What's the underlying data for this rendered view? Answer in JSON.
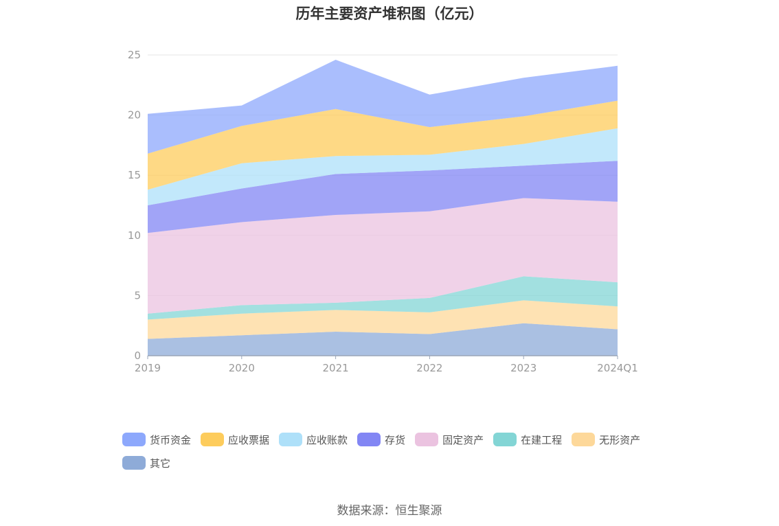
{
  "chart_data": {
    "type": "area",
    "stacked": true,
    "title": "历年主要资产堆积图（亿元）",
    "x": [
      "2019",
      "2020",
      "2021",
      "2022",
      "2023",
      "2024Q1"
    ],
    "ylim": [
      0,
      25
    ],
    "yticks": [
      "0",
      "5",
      "10",
      "15",
      "20",
      "25"
    ],
    "grid": true,
    "legend_position": "bottom",
    "series": [
      {
        "name": "其它",
        "color": "#8eabd8",
        "values": [
          1.4,
          1.7,
          2.0,
          1.8,
          2.7,
          2.2
        ]
      },
      {
        "name": "无形资产",
        "color": "#fdd89a",
        "values": [
          1.6,
          1.8,
          1.8,
          1.8,
          1.9,
          1.9
        ]
      },
      {
        "name": "在建工程",
        "color": "#83d5d5",
        "values": [
          0.5,
          0.7,
          0.6,
          1.2,
          2.0,
          2.0
        ]
      },
      {
        "name": "固定资产",
        "color": "#ebc3e0",
        "values": [
          6.7,
          6.9,
          7.3,
          7.2,
          6.5,
          6.7
        ]
      },
      {
        "name": "存货",
        "color": "#8286f4",
        "values": [
          2.3,
          2.8,
          3.4,
          3.4,
          2.7,
          3.4
        ]
      },
      {
        "name": "应收账款",
        "color": "#aee0f9",
        "values": [
          1.3,
          2.1,
          1.5,
          1.3,
          1.8,
          2.7
        ]
      },
      {
        "name": "应收票据",
        "color": "#fdcc5c",
        "values": [
          3.0,
          3.1,
          3.9,
          2.3,
          2.3,
          2.3
        ]
      },
      {
        "name": "货币资金",
        "color": "#8da8fc",
        "values": [
          3.3,
          1.7,
          4.1,
          2.7,
          3.2,
          2.9
        ]
      }
    ],
    "legend_order": [
      "货币资金",
      "应收票据",
      "应收账款",
      "存货",
      "固定资产",
      "在建工程",
      "无形资产",
      "其它"
    ],
    "source": "数据来源：恒生聚源"
  }
}
